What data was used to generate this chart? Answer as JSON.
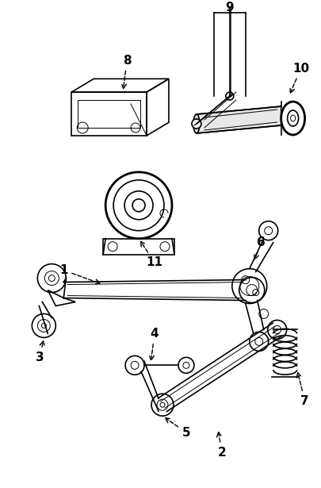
{
  "background_color": "#ffffff",
  "line_color": "#000000",
  "fig_width": 4.06,
  "fig_height": 6.15,
  "dpi": 100
}
